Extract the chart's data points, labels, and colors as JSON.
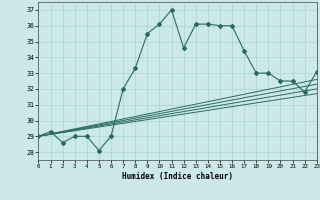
{
  "xlabel": "Humidex (Indice chaleur)",
  "xlim": [
    0,
    23
  ],
  "ylim": [
    27.5,
    37.5
  ],
  "yticks": [
    28,
    29,
    30,
    31,
    32,
    33,
    34,
    35,
    36,
    37
  ],
  "xticks": [
    0,
    1,
    2,
    3,
    4,
    5,
    6,
    7,
    8,
    9,
    10,
    11,
    12,
    13,
    14,
    15,
    16,
    17,
    18,
    19,
    20,
    21,
    22,
    23
  ],
  "bg_color": "#cce8e8",
  "line_color": "#2a6b60",
  "main_line_x": [
    0,
    1,
    2,
    3,
    4,
    5,
    6,
    7,
    8,
    9,
    10,
    11,
    12,
    13,
    14,
    15,
    16,
    17,
    18,
    19,
    20,
    21,
    22,
    23
  ],
  "main_line_y": [
    29.0,
    29.3,
    28.6,
    29.0,
    29.0,
    28.1,
    29.0,
    32.0,
    33.3,
    35.5,
    36.1,
    37.0,
    34.6,
    36.1,
    36.1,
    36.0,
    36.0,
    34.4,
    33.0,
    33.0,
    32.5,
    32.5,
    31.8,
    33.1
  ],
  "reg_lines": [
    {
      "x": [
        0,
        23
      ],
      "y": [
        29.0,
        32.6
      ]
    },
    {
      "x": [
        0,
        23
      ],
      "y": [
        29.0,
        32.3
      ]
    },
    {
      "x": [
        0,
        23
      ],
      "y": [
        29.0,
        32.0
      ]
    },
    {
      "x": [
        0,
        23
      ],
      "y": [
        29.0,
        31.7
      ]
    }
  ]
}
